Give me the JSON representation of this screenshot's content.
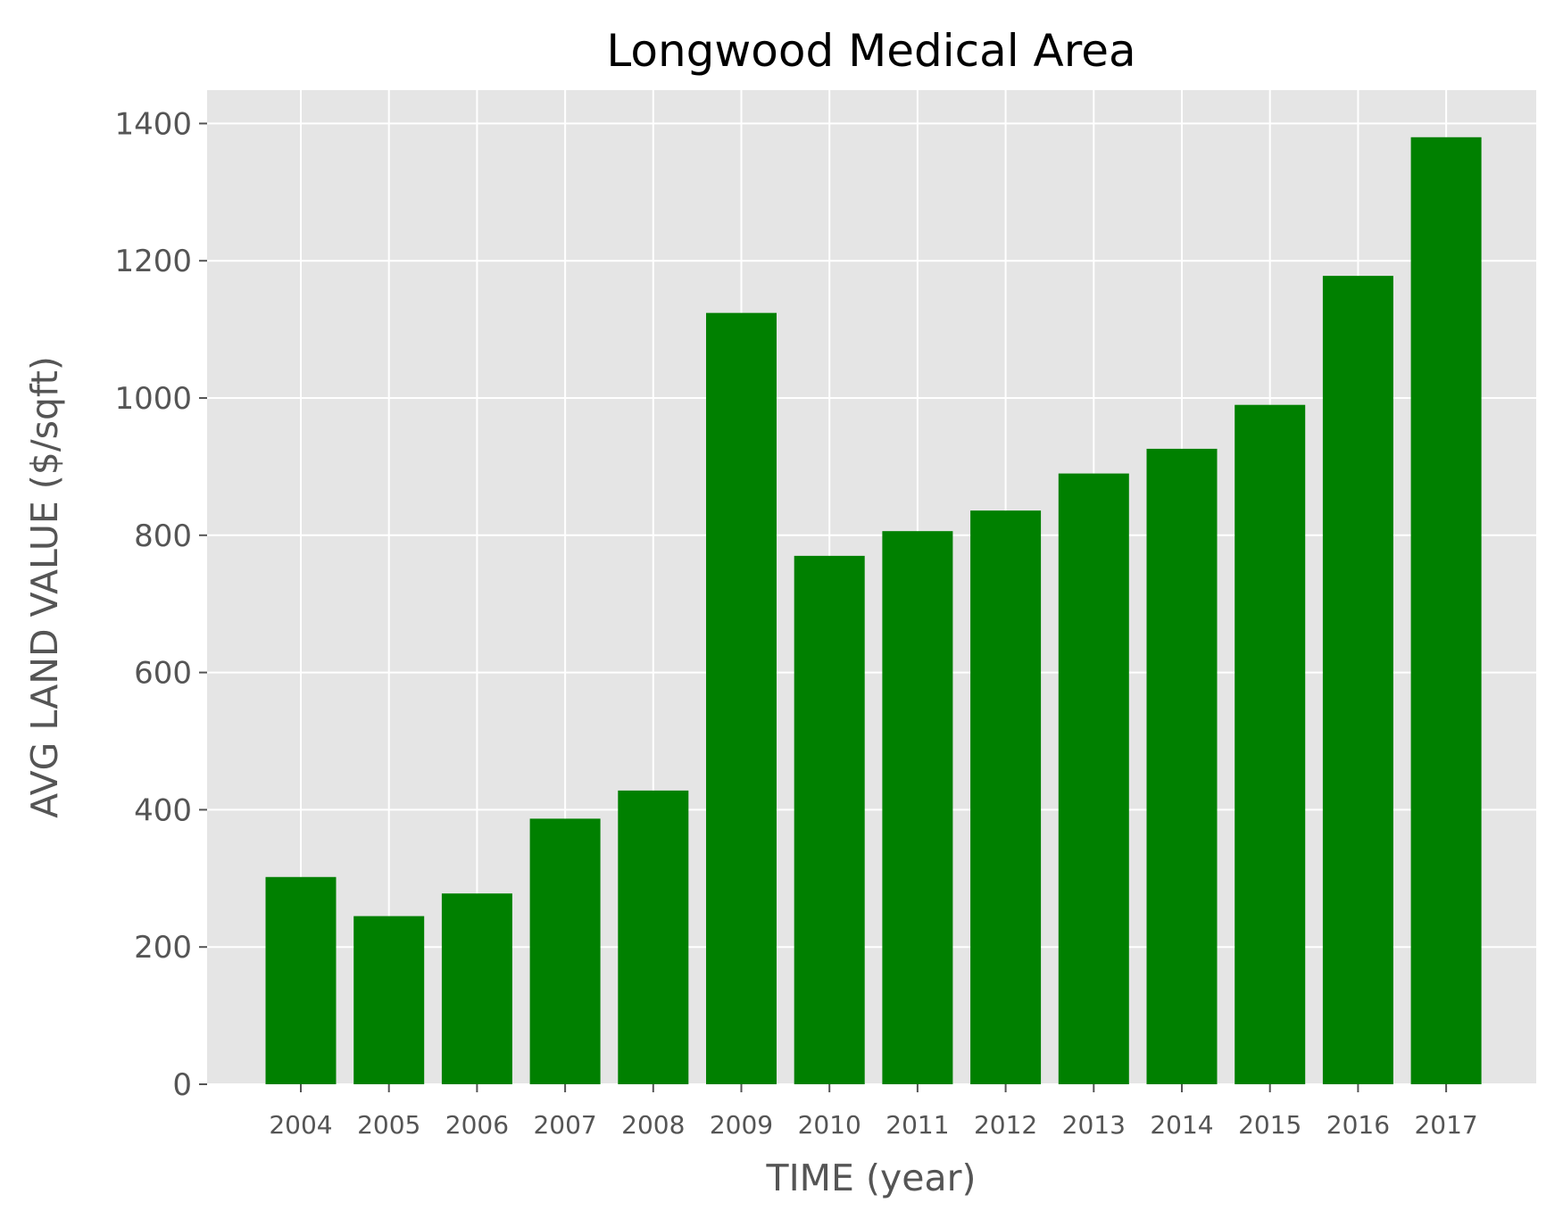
{
  "chart_data": {
    "type": "bar",
    "title": "Longwood Medical Area",
    "xlabel": "TIME (year)",
    "ylabel": "AVG LAND VALUE ($/sqft)",
    "categories": [
      "2004",
      "2005",
      "2006",
      "2007",
      "2008",
      "2009",
      "2010",
      "2011",
      "2012",
      "2013",
      "2014",
      "2015",
      "2016",
      "2017"
    ],
    "values": [
      302,
      245,
      278,
      387,
      428,
      1124,
      770,
      806,
      836,
      890,
      926,
      990,
      1178,
      1380
    ],
    "yticks": [
      0,
      200,
      400,
      600,
      800,
      1000,
      1200,
      1400
    ],
    "ytick_labels": [
      "0",
      "200",
      "400",
      "600",
      "800",
      "1000",
      "1200",
      "1400"
    ],
    "ylim": [
      0,
      1450
    ],
    "grid": true,
    "colors": {
      "bar": "#008000",
      "plot_background": "#e5e5e5",
      "grid": "#ffffff",
      "tick_text": "#555555",
      "title_text": "#000000"
    }
  }
}
